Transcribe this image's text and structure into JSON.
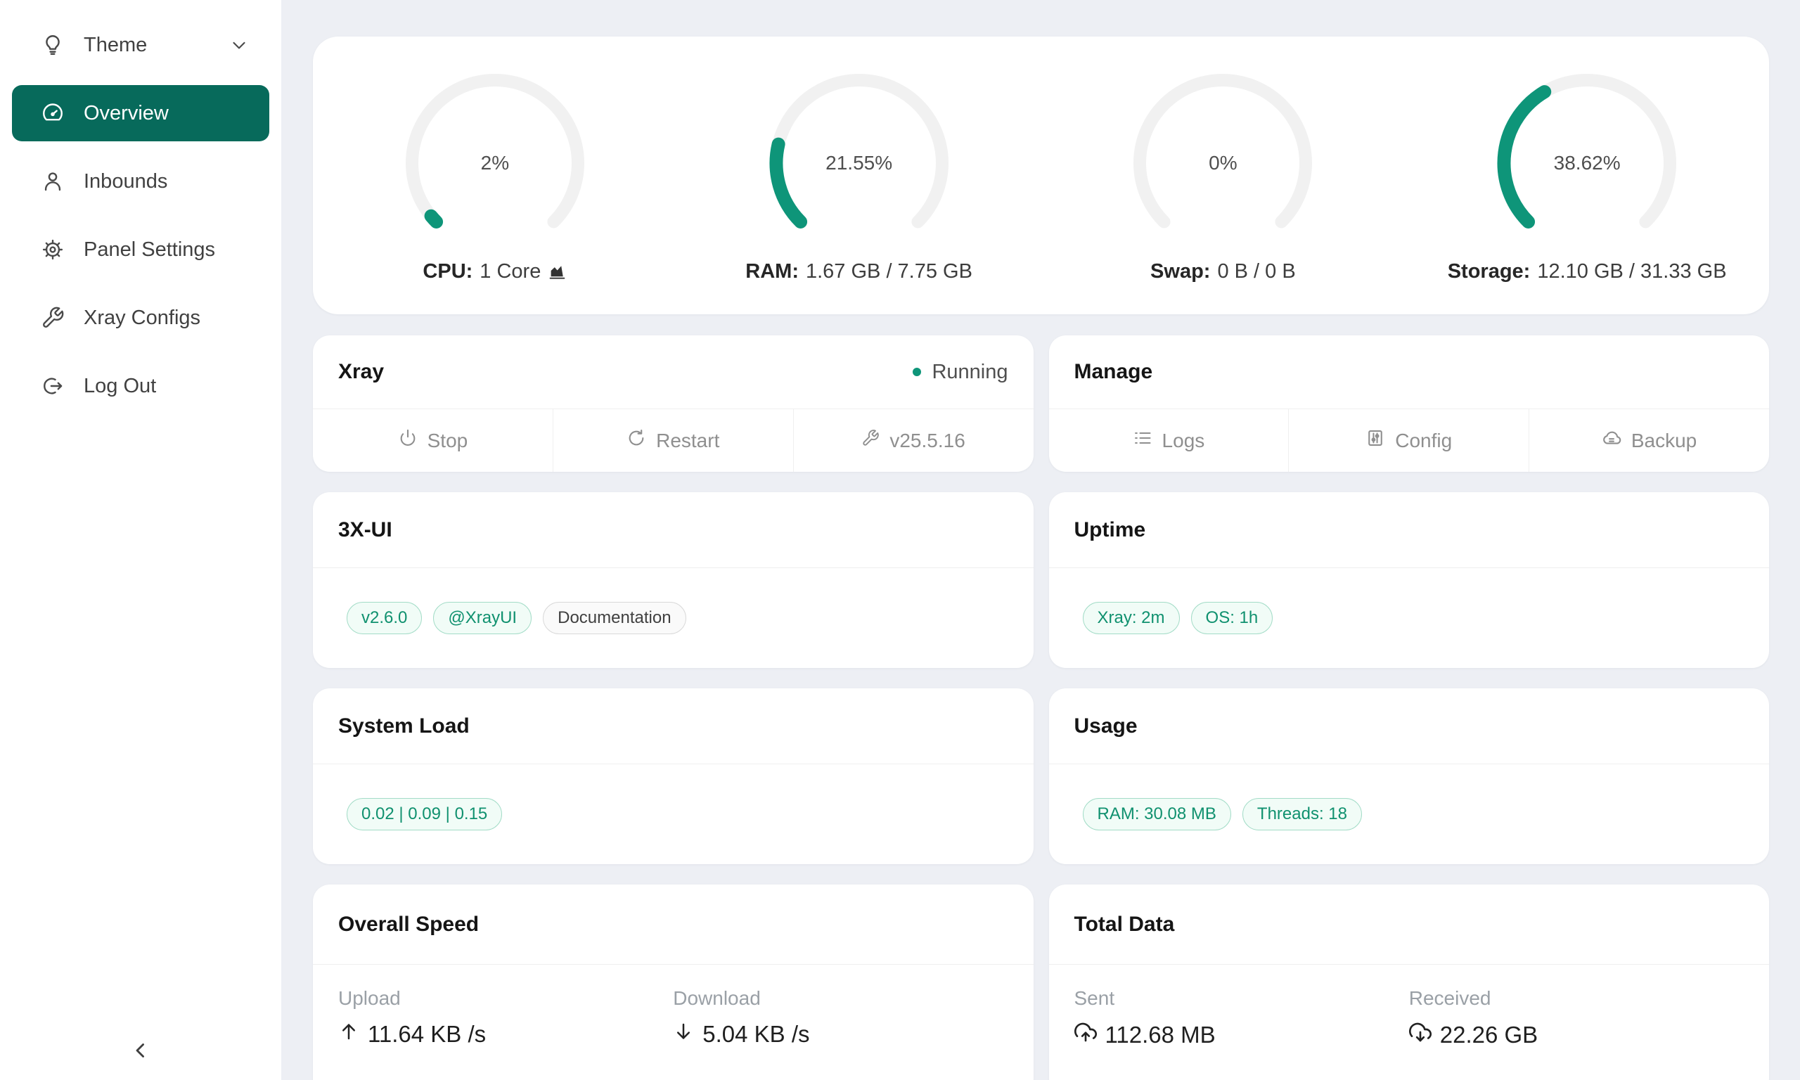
{
  "colors": {
    "sidebar_active_bg": "#076a5b",
    "gauge_fill": "#0e9579",
    "gauge_track": "#f1f1f1",
    "badge_green_text": "#10916f",
    "badge_green_border": "#a3dcc7",
    "badge_green_bg": "#f1fcf7",
    "status_dot": "#0e9579"
  },
  "sidebar": {
    "items": [
      {
        "label": "Theme",
        "icon": "lightbulb-icon",
        "expandable": true
      },
      {
        "label": "Overview",
        "icon": "dashboard-icon",
        "active": true
      },
      {
        "label": "Inbounds",
        "icon": "user-icon"
      },
      {
        "label": "Panel Settings",
        "icon": "gear-icon"
      },
      {
        "label": "Xray Configs",
        "icon": "wrench-icon"
      },
      {
        "label": "Log Out",
        "icon": "logout-icon"
      }
    ]
  },
  "gauges": [
    {
      "percent": "2%",
      "value": 2,
      "label_prefix": "CPU:",
      "label_value": "1 Core",
      "has_chart_icon": true
    },
    {
      "percent": "21.55%",
      "value": 21.55,
      "label_prefix": "RAM:",
      "label_value": "1.67 GB / 7.75 GB"
    },
    {
      "percent": "0%",
      "value": 0,
      "label_prefix": "Swap:",
      "label_value": "0 B / 0 B"
    },
    {
      "percent": "38.62%",
      "value": 38.62,
      "label_prefix": "Storage:",
      "label_value": "12.10 GB / 31.33 GB"
    }
  ],
  "cards": {
    "xray": {
      "title": "Xray",
      "status": "Running",
      "actions": [
        {
          "label": "Stop",
          "icon": "power-icon"
        },
        {
          "label": "Restart",
          "icon": "restart-icon"
        },
        {
          "label": "v25.5.16",
          "icon": "wrench-icon"
        }
      ]
    },
    "manage": {
      "title": "Manage",
      "actions": [
        {
          "label": "Logs",
          "icon": "list-icon"
        },
        {
          "label": "Config",
          "icon": "sliders-icon"
        },
        {
          "label": "Backup",
          "icon": "cloud-icon"
        }
      ]
    },
    "xui": {
      "title": "3X-UI",
      "badges": [
        {
          "label": "v2.6.0",
          "type": "green"
        },
        {
          "label": "@XrayUI",
          "type": "green"
        },
        {
          "label": "Documentation",
          "type": "default"
        }
      ]
    },
    "uptime": {
      "title": "Uptime",
      "badges": [
        {
          "label": "Xray: 2m",
          "type": "green"
        },
        {
          "label": "OS: 1h",
          "type": "green"
        }
      ]
    },
    "system_load": {
      "title": "System Load",
      "badges": [
        {
          "label": "0.02 | 0.09 | 0.15",
          "type": "green"
        }
      ]
    },
    "usage": {
      "title": "Usage",
      "badges": [
        {
          "label": "RAM: 30.08 MB",
          "type": "green"
        },
        {
          "label": "Threads: 18",
          "type": "green"
        }
      ]
    },
    "overall_speed": {
      "title": "Overall Speed",
      "stats": [
        {
          "label": "Upload",
          "value": "11.64 KB /s",
          "icon": "arrow-up-icon"
        },
        {
          "label": "Download",
          "value": "5.04 KB /s",
          "icon": "arrow-down-icon"
        }
      ]
    },
    "total_data": {
      "title": "Total Data",
      "stats": [
        {
          "label": "Sent",
          "value": "112.68 MB",
          "icon": "cloud-upload-icon"
        },
        {
          "label": "Received",
          "value": "22.26 GB",
          "icon": "cloud-download-icon"
        }
      ]
    }
  }
}
